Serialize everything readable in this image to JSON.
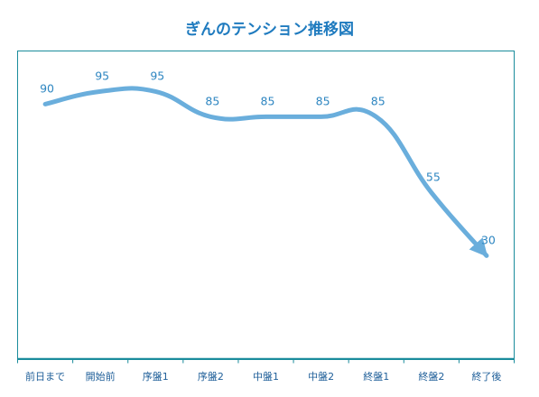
{
  "chart_data": {
    "type": "line",
    "title": "ぎんのテンション推移図",
    "categories": [
      "前日まで",
      "開始前",
      "序盤1",
      "序盤2",
      "中盤1",
      "中盤2",
      "終盤1",
      "終盤2",
      "終了後"
    ],
    "values": [
      90,
      95,
      95,
      85,
      85,
      85,
      85,
      55,
      30
    ],
    "xlabel": "",
    "ylabel": "",
    "ylim": [
      0,
      100
    ],
    "grid": false,
    "legend": "none",
    "line_style": "smooth with arrowhead at end",
    "colors": {
      "line": "#6aaedc",
      "title": "#1f7bbf",
      "labels": "#2e86c1",
      "ticks": "#1f5f99",
      "axis": "#1a8c9c"
    }
  }
}
